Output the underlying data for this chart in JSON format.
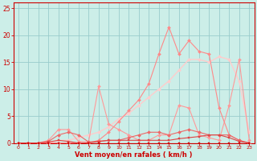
{
  "xlabel": "Vent moyen/en rafales ( km/h )",
  "bg_color": "#cceee8",
  "grid_color": "#99cccc",
  "axis_color": "#cc0000",
  "xlim": [
    -0.5,
    23.5
  ],
  "ylim": [
    0,
    26
  ],
  "yticks": [
    0,
    5,
    10,
    15,
    20,
    25
  ],
  "xticks": [
    0,
    1,
    2,
    3,
    4,
    5,
    6,
    7,
    8,
    9,
    10,
    11,
    12,
    13,
    14,
    15,
    16,
    17,
    18,
    19,
    20,
    21,
    22,
    23
  ],
  "lines": [
    {
      "x": [
        0,
        1,
        2,
        3,
        4,
        5,
        6,
        7,
        8,
        9,
        10,
        11,
        12,
        13,
        14,
        15,
        16,
        17,
        18,
        19,
        20,
        21,
        22,
        23
      ],
      "y": [
        0,
        0,
        0,
        0,
        0,
        0,
        0,
        0,
        0,
        0,
        0,
        0,
        0,
        0,
        0,
        0,
        0,
        0,
        0,
        0,
        0,
        0,
        0,
        0
      ],
      "color": "#cc0000",
      "lw": 0.8,
      "marker": "s",
      "ms": 2.0,
      "zorder": 10
    },
    {
      "x": [
        0,
        1,
        2,
        3,
        4,
        5,
        6,
        7,
        8,
        9,
        10,
        11,
        12,
        13,
        14,
        15,
        16,
        17,
        18,
        19,
        20,
        21,
        22,
        23
      ],
      "y": [
        0,
        0,
        0,
        0.2,
        0.5,
        0.3,
        0,
        0,
        0.3,
        0.5,
        0.5,
        0.5,
        0.5,
        0.5,
        0.5,
        0.5,
        0.8,
        1.0,
        1.2,
        1.5,
        1.5,
        1.0,
        0.3,
        0
      ],
      "color": "#dd4444",
      "lw": 0.8,
      "marker": "s",
      "ms": 2.0,
      "zorder": 9
    },
    {
      "x": [
        0,
        1,
        2,
        3,
        4,
        5,
        6,
        7,
        8,
        9,
        10,
        11,
        12,
        13,
        14,
        15,
        16,
        17,
        18,
        19,
        20,
        21,
        22,
        23
      ],
      "y": [
        0,
        0,
        0,
        0.3,
        1.5,
        2.0,
        1.5,
        0.2,
        0.3,
        0.5,
        0.5,
        1.0,
        1.5,
        2.0,
        2.0,
        1.5,
        2.0,
        2.5,
        2.0,
        1.5,
        1.5,
        1.5,
        0.5,
        0
      ],
      "color": "#ee6666",
      "lw": 0.8,
      "marker": "D",
      "ms": 2.0,
      "zorder": 8
    },
    {
      "x": [
        0,
        1,
        2,
        3,
        4,
        5,
        6,
        7,
        8,
        9,
        10,
        11,
        12,
        13,
        14,
        15,
        16,
        17,
        18,
        19,
        20,
        21,
        22,
        23
      ],
      "y": [
        0,
        0,
        0,
        0.5,
        2.5,
        2.5,
        0.3,
        0.2,
        10.5,
        3.5,
        2.5,
        1.5,
        0.5,
        0.5,
        1.5,
        1.5,
        7.0,
        6.5,
        1.5,
        1.0,
        0.5,
        7.0,
        15.5,
        0.5
      ],
      "color": "#ff9999",
      "lw": 0.8,
      "marker": "D",
      "ms": 2.0,
      "zorder": 7
    },
    {
      "x": [
        0,
        1,
        2,
        3,
        4,
        5,
        6,
        7,
        8,
        9,
        10,
        11,
        12,
        13,
        14,
        15,
        16,
        17,
        18,
        19,
        20,
        21,
        22,
        23
      ],
      "y": [
        0,
        0,
        0,
        0,
        0.5,
        0.5,
        1.0,
        1.5,
        2.0,
        3.0,
        4.5,
        5.5,
        7.0,
        8.5,
        10.0,
        11.5,
        13.5,
        15.5,
        15.5,
        15.0,
        16.0,
        15.5,
        11.5,
        2.0
      ],
      "color": "#ffcccc",
      "lw": 1.0,
      "marker": "D",
      "ms": 2.0,
      "zorder": 6
    },
    {
      "x": [
        0,
        1,
        2,
        3,
        4,
        5,
        6,
        7,
        8,
        9,
        10,
        11,
        12,
        13,
        14,
        15,
        16,
        17,
        18,
        19,
        20,
        21,
        22,
        23
      ],
      "y": [
        0,
        0,
        0,
        0,
        0,
        0,
        0,
        0,
        0.5,
        2.0,
        4.0,
        6.0,
        8.0,
        11.0,
        16.5,
        21.5,
        16.5,
        19.0,
        17.0,
        16.5,
        6.5,
        1.5,
        0.5,
        0
      ],
      "color": "#ff8888",
      "lw": 0.8,
      "marker": "D",
      "ms": 2.0,
      "zorder": 7
    }
  ]
}
